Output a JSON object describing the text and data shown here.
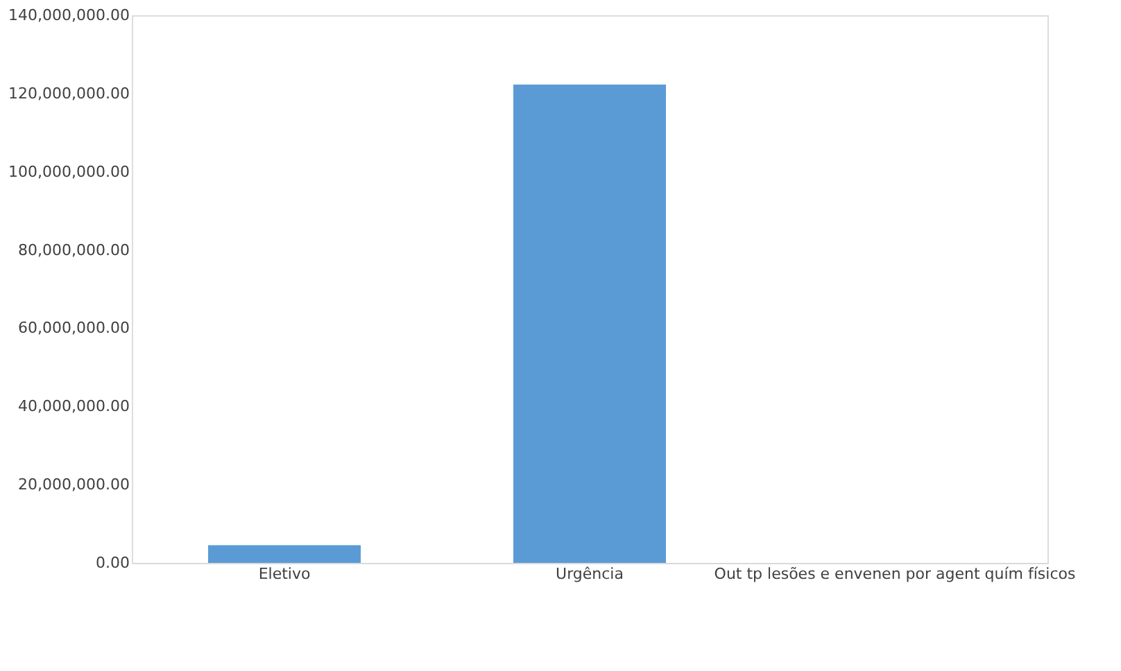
{
  "chart_data": {
    "type": "bar",
    "categories": [
      "Eletivo",
      "Urgência",
      "Out tp lesões e envenen por agent quím físicos"
    ],
    "values": [
      4500000,
      122300000,
      0
    ],
    "color": "#5b9bd5",
    "ylim": [
      0,
      140000000
    ],
    "yticks": [
      {
        "value": 0,
        "label": "0.00"
      },
      {
        "value": 20000000,
        "label": "20,000,000.00"
      },
      {
        "value": 40000000,
        "label": "40,000,000.00"
      },
      {
        "value": 60000000,
        "label": "60,000,000.00"
      },
      {
        "value": 80000000,
        "label": "80,000,000.00"
      },
      {
        "value": 100000000,
        "label": "100,000,000.00"
      },
      {
        "value": 120000000,
        "label": "120,000,000.00"
      },
      {
        "value": 140000000,
        "label": "140,000,000.00"
      }
    ],
    "grid": false
  }
}
